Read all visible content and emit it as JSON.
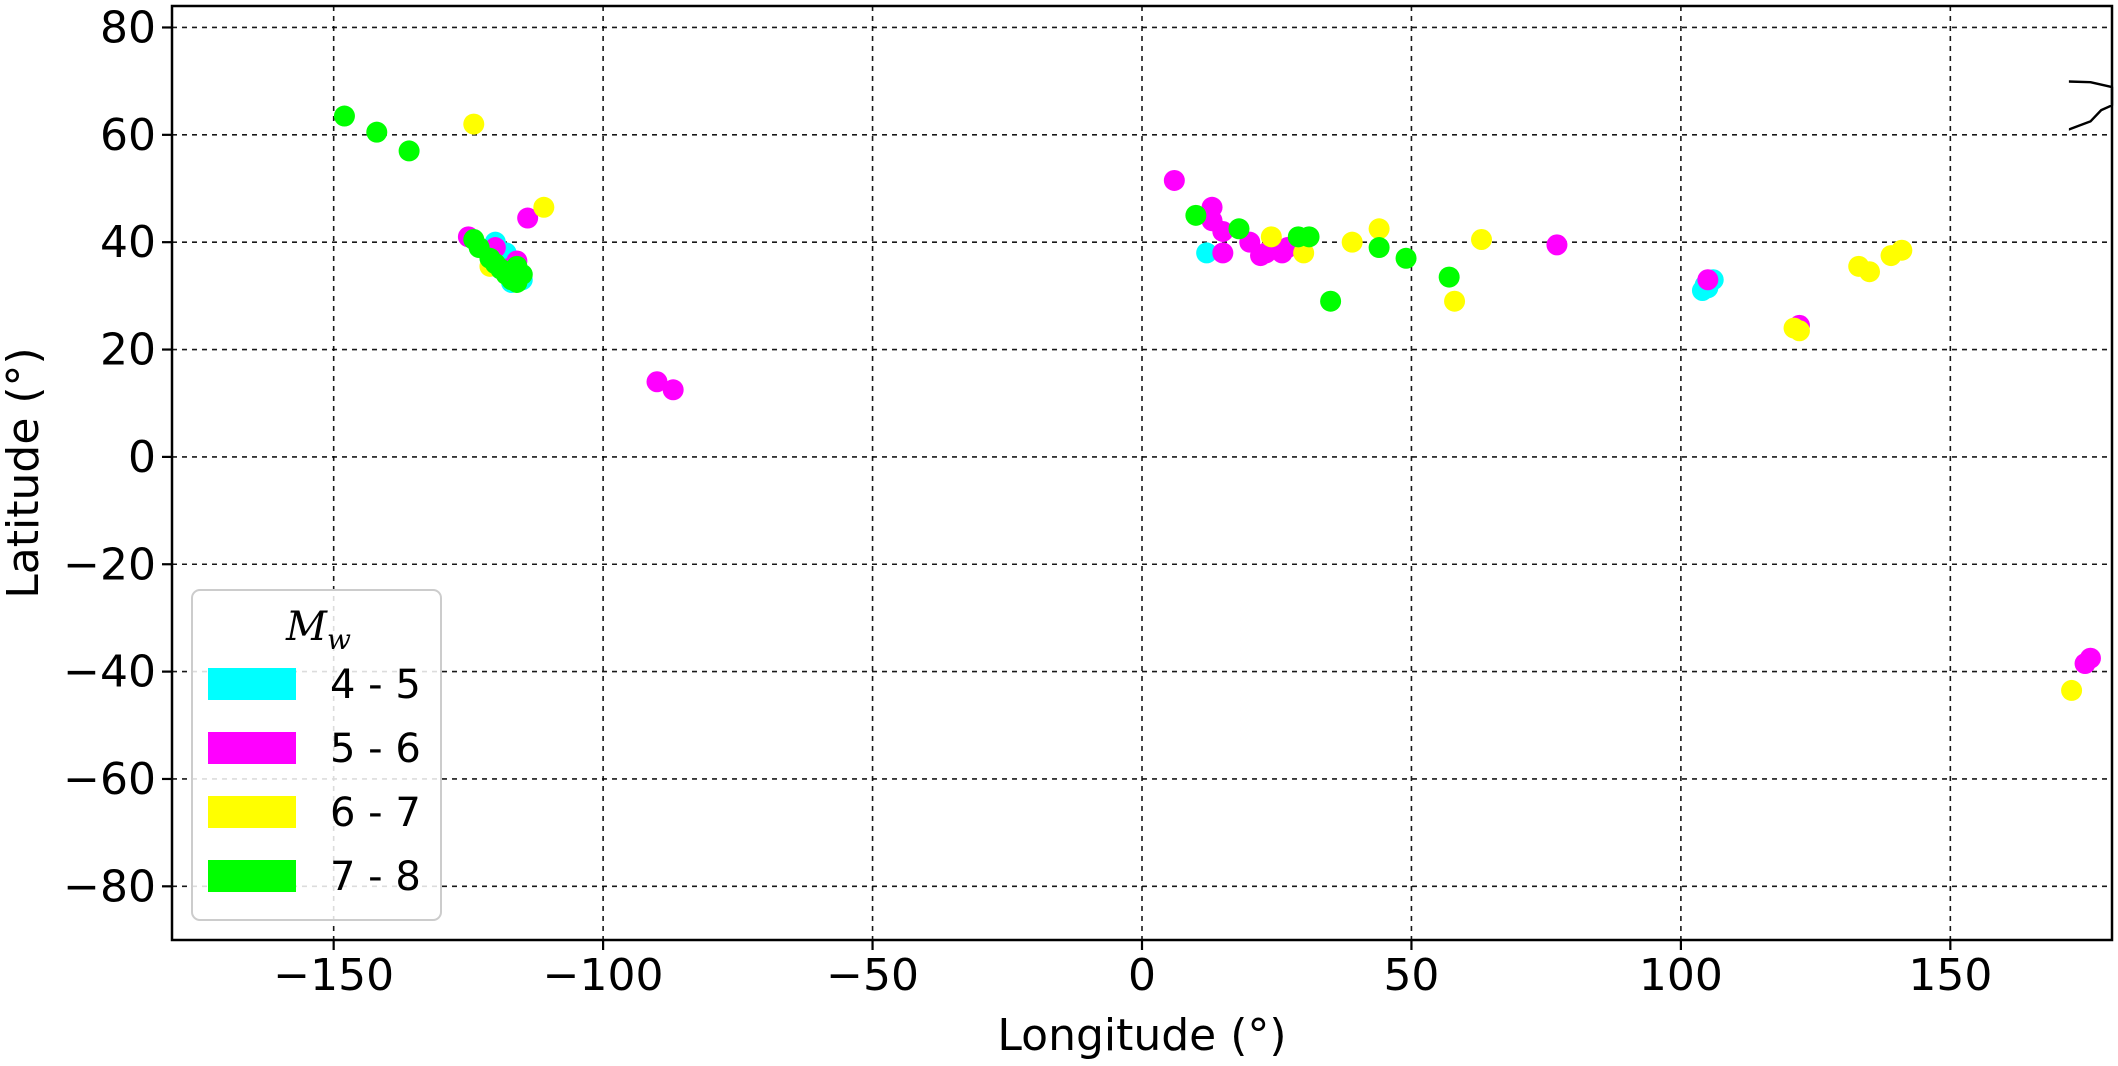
{
  "chart_data": {
    "type": "scatter",
    "xlabel": "Longitude (°)",
    "ylabel": "Latitude (°)",
    "xlim": [
      -180,
      180
    ],
    "ylim": [
      -90,
      84
    ],
    "xticks": [
      -150,
      -100,
      -50,
      0,
      50,
      100,
      150
    ],
    "yticks": [
      -80,
      -60,
      -40,
      -20,
      0,
      20,
      40,
      60,
      80
    ],
    "grid": true,
    "legend_placement": "lower-left",
    "legend_title": "M",
    "legend_title_sub": "w",
    "series": [
      {
        "name": "4 - 5",
        "color": "#00ffff",
        "points": [
          [
            -120,
            40
          ],
          [
            -118,
            38
          ],
          [
            -117,
            36
          ],
          [
            -116,
            34
          ],
          [
            -115,
            33
          ],
          [
            -117,
            32.5
          ],
          [
            12,
            38
          ],
          [
            104,
            31
          ],
          [
            104.5,
            32
          ],
          [
            105,
            31.5
          ],
          [
            106,
            33
          ]
        ]
      },
      {
        "name": "5 - 6",
        "color": "#ff00ff",
        "points": [
          [
            -125,
            41
          ],
          [
            -120,
            39
          ],
          [
            -118,
            35
          ],
          [
            -116,
            36.5
          ],
          [
            -114,
            44.5
          ],
          [
            -90,
            14
          ],
          [
            -87,
            12.5
          ],
          [
            6,
            51.5
          ],
          [
            13,
            46.5
          ],
          [
            13,
            44
          ],
          [
            15,
            42
          ],
          [
            15,
            38
          ],
          [
            20,
            40
          ],
          [
            22,
            37.5
          ],
          [
            23,
            38
          ],
          [
            26,
            38
          ],
          [
            27,
            39
          ],
          [
            77,
            39.5
          ],
          [
            105,
            33
          ],
          [
            122,
            24.5
          ],
          [
            175,
            -38.5
          ],
          [
            176,
            -37.5
          ]
        ]
      },
      {
        "name": "6 - 7",
        "color": "#ffff00",
        "points": [
          [
            -124,
            62
          ],
          [
            -111,
            46.5
          ],
          [
            -121,
            35.5
          ],
          [
            24,
            41
          ],
          [
            30,
            38
          ],
          [
            39,
            40
          ],
          [
            44,
            42.5
          ],
          [
            58,
            29
          ],
          [
            63,
            40.5
          ],
          [
            121,
            24
          ],
          [
            122,
            23.5
          ],
          [
            133,
            35.5
          ],
          [
            135,
            34.5
          ],
          [
            139,
            37.5
          ],
          [
            141,
            38.5
          ],
          [
            172.5,
            -43.5
          ]
        ]
      },
      {
        "name": "7 - 8",
        "color": "#00ff00",
        "points": [
          [
            -148,
            63.5
          ],
          [
            -142,
            60.5
          ],
          [
            -136,
            57
          ],
          [
            -124,
            40.5
          ],
          [
            -123,
            39
          ],
          [
            -121,
            37
          ],
          [
            -120,
            36
          ],
          [
            -119,
            35
          ],
          [
            -118,
            34
          ],
          [
            -117,
            33
          ],
          [
            -116,
            32.5
          ],
          [
            -115,
            34
          ],
          [
            -116,
            35.5
          ],
          [
            10,
            45
          ],
          [
            18,
            42.5
          ],
          [
            29,
            41
          ],
          [
            31,
            41
          ],
          [
            35,
            29
          ],
          [
            44,
            39
          ],
          [
            49,
            37
          ],
          [
            57,
            33.5
          ]
        ]
      }
    ]
  }
}
